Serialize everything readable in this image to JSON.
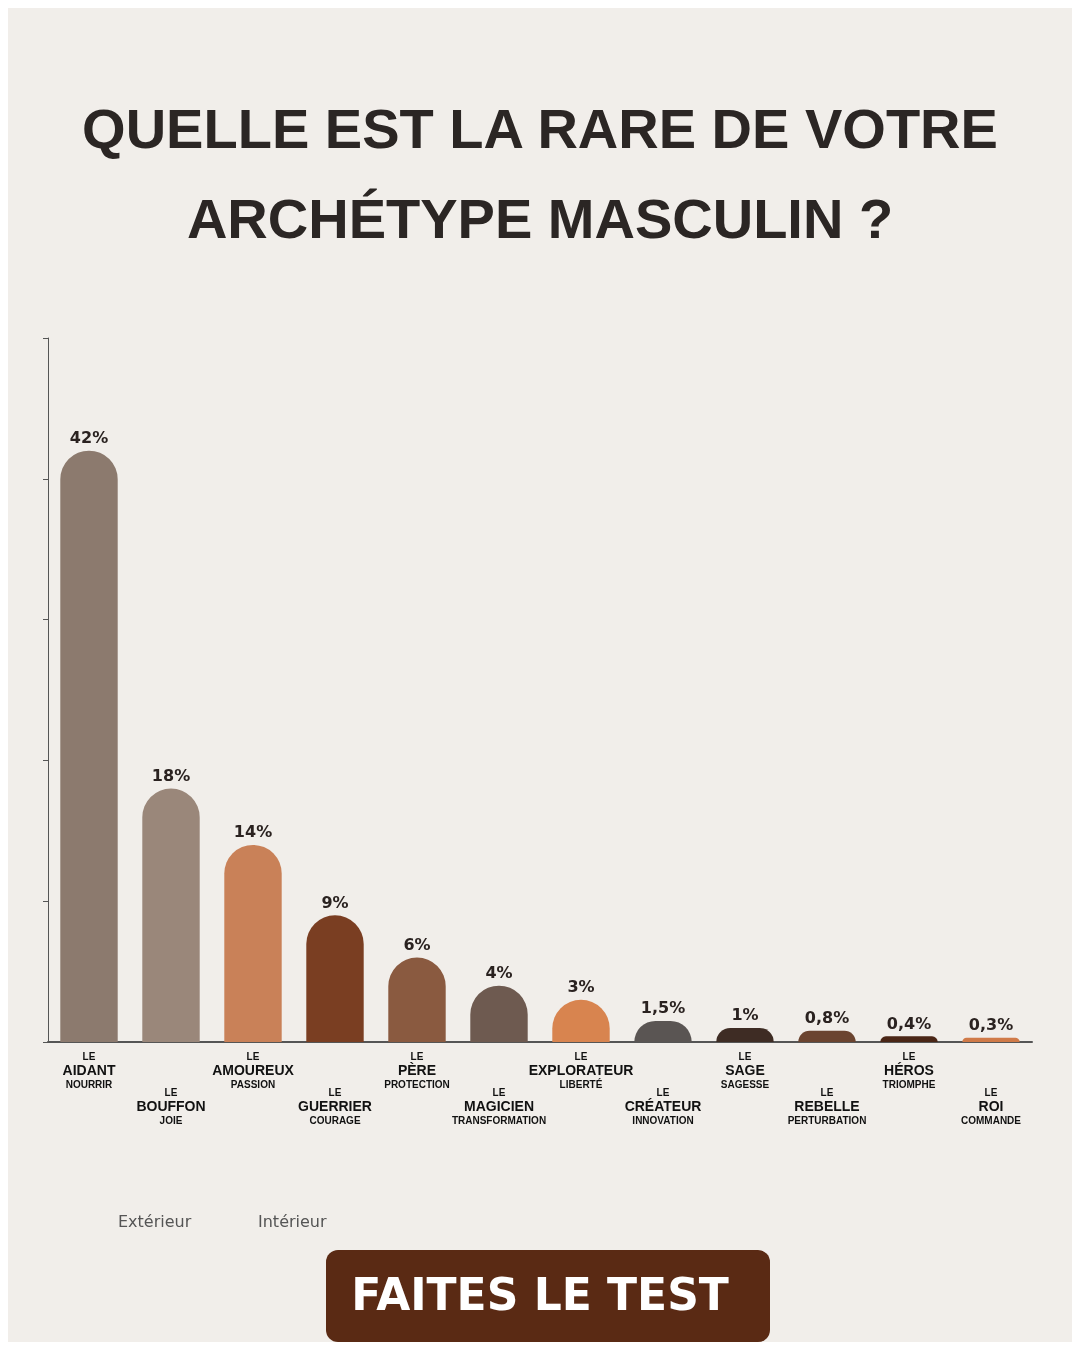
{
  "chart_data": {
    "type": "bar",
    "title": "QUELLE EST LA RARE DE VOTRE\nARCHÉTYPE MASCULIN ?",
    "categories": [
      "LE\nAIDANT\nNOURRIR",
      "LE\nBOUFFON\nJOIE",
      "LE\nAMOUREUX\nPASSION",
      "LE\nGUERRIER\nCOURAGE",
      "LE\nPÈRE\nPROTECTION",
      "LE\nMAGICIEN\nTRANSFORMATION",
      "LE\nEXPLORATEUR\nLIBERTÉ",
      "LE\nCRÉATEUR\nINNOVATION",
      "LE\nSAGE\nSAGESSE",
      "LE\nREBELLE\nPERTURBATION",
      "LE\nHÉROS\nTRIOMPHE",
      "LE\nROI\nCOMMANDE"
    ],
    "values": [
      42,
      18,
      14,
      9,
      6,
      4,
      3,
      1.5,
      1,
      0.8,
      0.4,
      0.3
    ],
    "value_labels": [
      "42%",
      "18%",
      "14%",
      "9%",
      "6%",
      "4%",
      "3%",
      "1,5%",
      "1%",
      "0,8%",
      "0,4%",
      "0,3%"
    ],
    "colors": [
      "#8c7a6e",
      "#9a877a",
      "#c98158",
      "#7a3e22",
      "#8a5a40",
      "#6e5a50",
      "#d8844f",
      "#5a5553",
      "#3e2c24",
      "#6b4430",
      "#4a2616",
      "#d07a48"
    ],
    "annotations": [
      "Extérieur",
      "Intérieur",
      "FAITES LE TEST"
    ]
  }
}
